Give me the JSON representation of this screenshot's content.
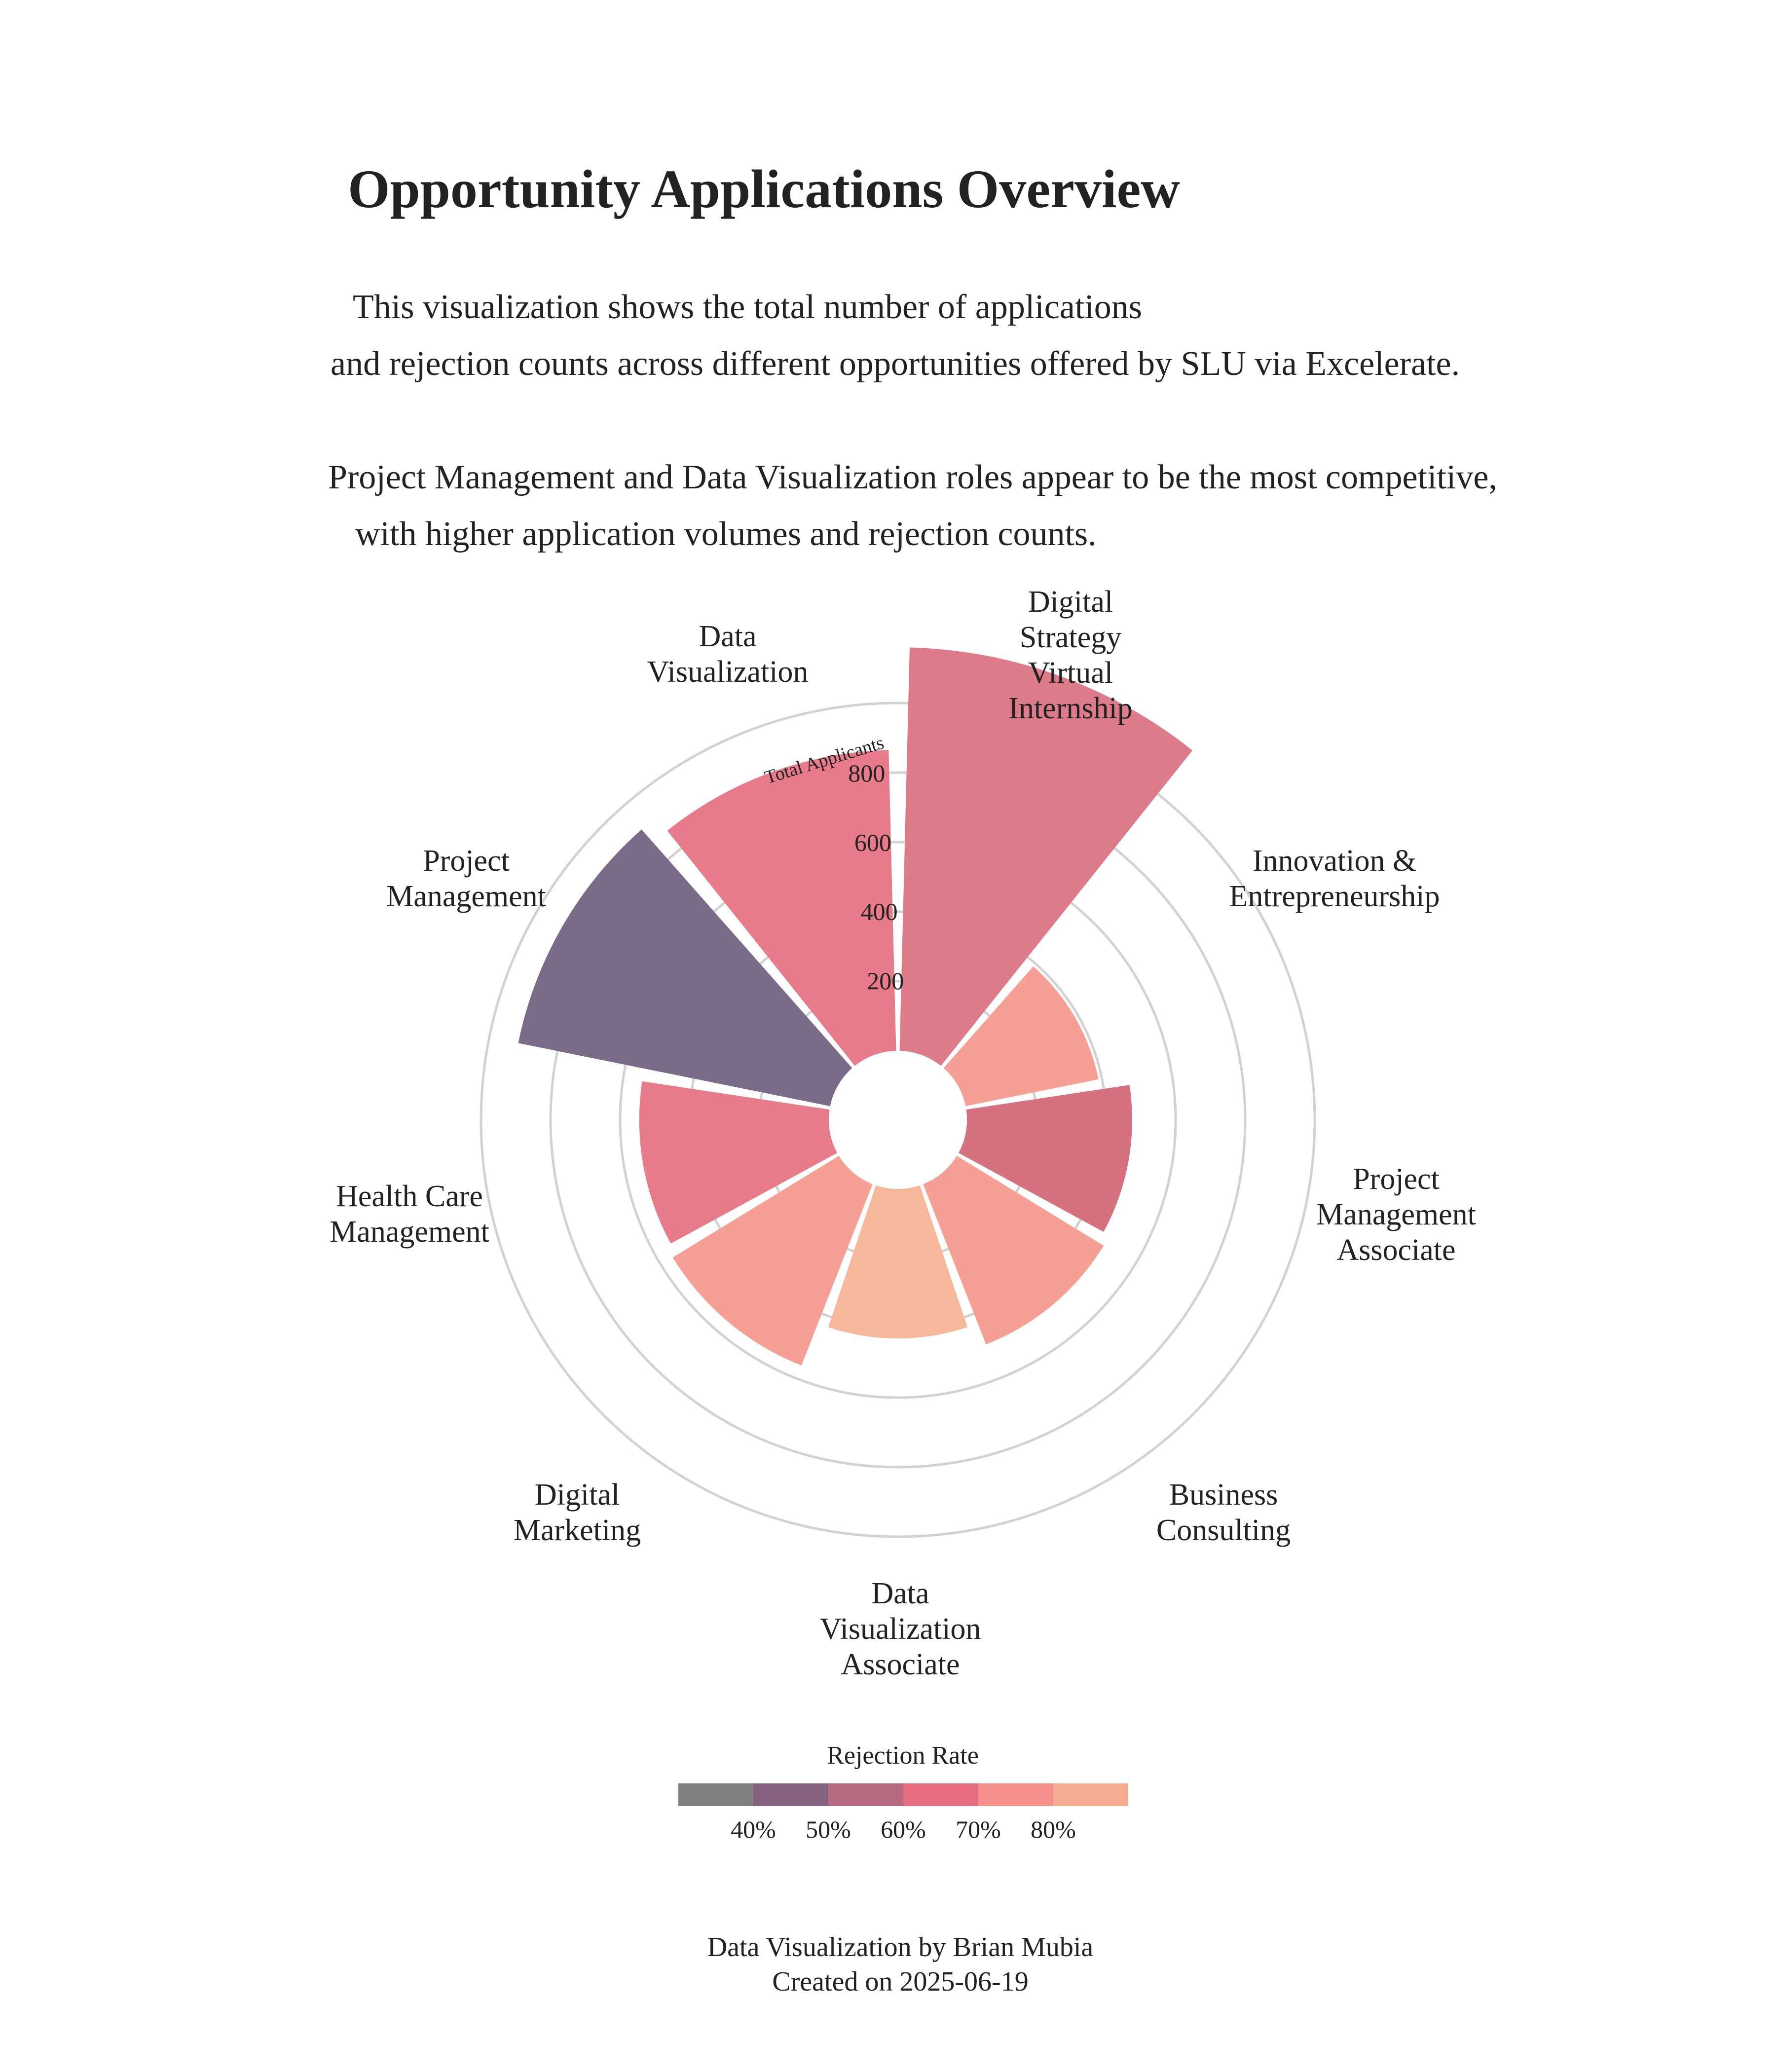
{
  "chart_data": {
    "type": "radial-bar",
    "title": "Opportunity Applications Overview",
    "subtitle_lines": [
      "This visualization shows the total number of  applications",
      "and rejection counts across different opportunities offered by SLU via Excelerate.",
      "",
      "Project Management and Data Visualization roles appear to be the most competitive,",
      "with higher application volumes and rejection counts."
    ],
    "radial_axis_label": "Total Applicants",
    "radial_ticks": [
      200,
      400,
      600,
      800
    ],
    "rmax": 1000,
    "categories": [
      "Data Visualization",
      "Digital Strategy Virtual Internship",
      "Innovation & Entrepreneurship",
      "Project Management Associate",
      "Business Consulting",
      "Data Visualization Associate",
      "Digital Marketing",
      "Health Care Management",
      "Project Management"
    ],
    "values": [
      1160,
      390,
      475,
      495,
      430,
      560,
      545,
      915,
      865
    ],
    "rejection_rate_pct": [
      60,
      80,
      60,
      80,
      85,
      80,
      70,
      45,
      70
    ],
    "colors": {
      "Data Visualization": "#de7b8a",
      "Digital Strategy Virtual Internship": "#f6a095",
      "Innovation & Entrepreneurship": "#d6727f",
      "Project Management Associate": "#f6a095",
      "Business Consulting": "#f7b79b",
      "Data Visualization Associate": "#f6a095",
      "Digital Marketing": "#e77b8a",
      "Health Care Management": "#7a6b88",
      "Project Management": "#e77b8a"
    },
    "legend": {
      "title": "Rejection Rate",
      "swatches": [
        "#808080",
        "#84617f",
        "#b76a82",
        "#e66c82",
        "#f48f89",
        "#f6ad92"
      ],
      "tick_labels": [
        "40%",
        "50%",
        "60%",
        "70%",
        "80%"
      ]
    },
    "caption_lines": [
      "Data Visualization by Brian Mubia",
      "Created on 2025-06-19"
    ]
  }
}
